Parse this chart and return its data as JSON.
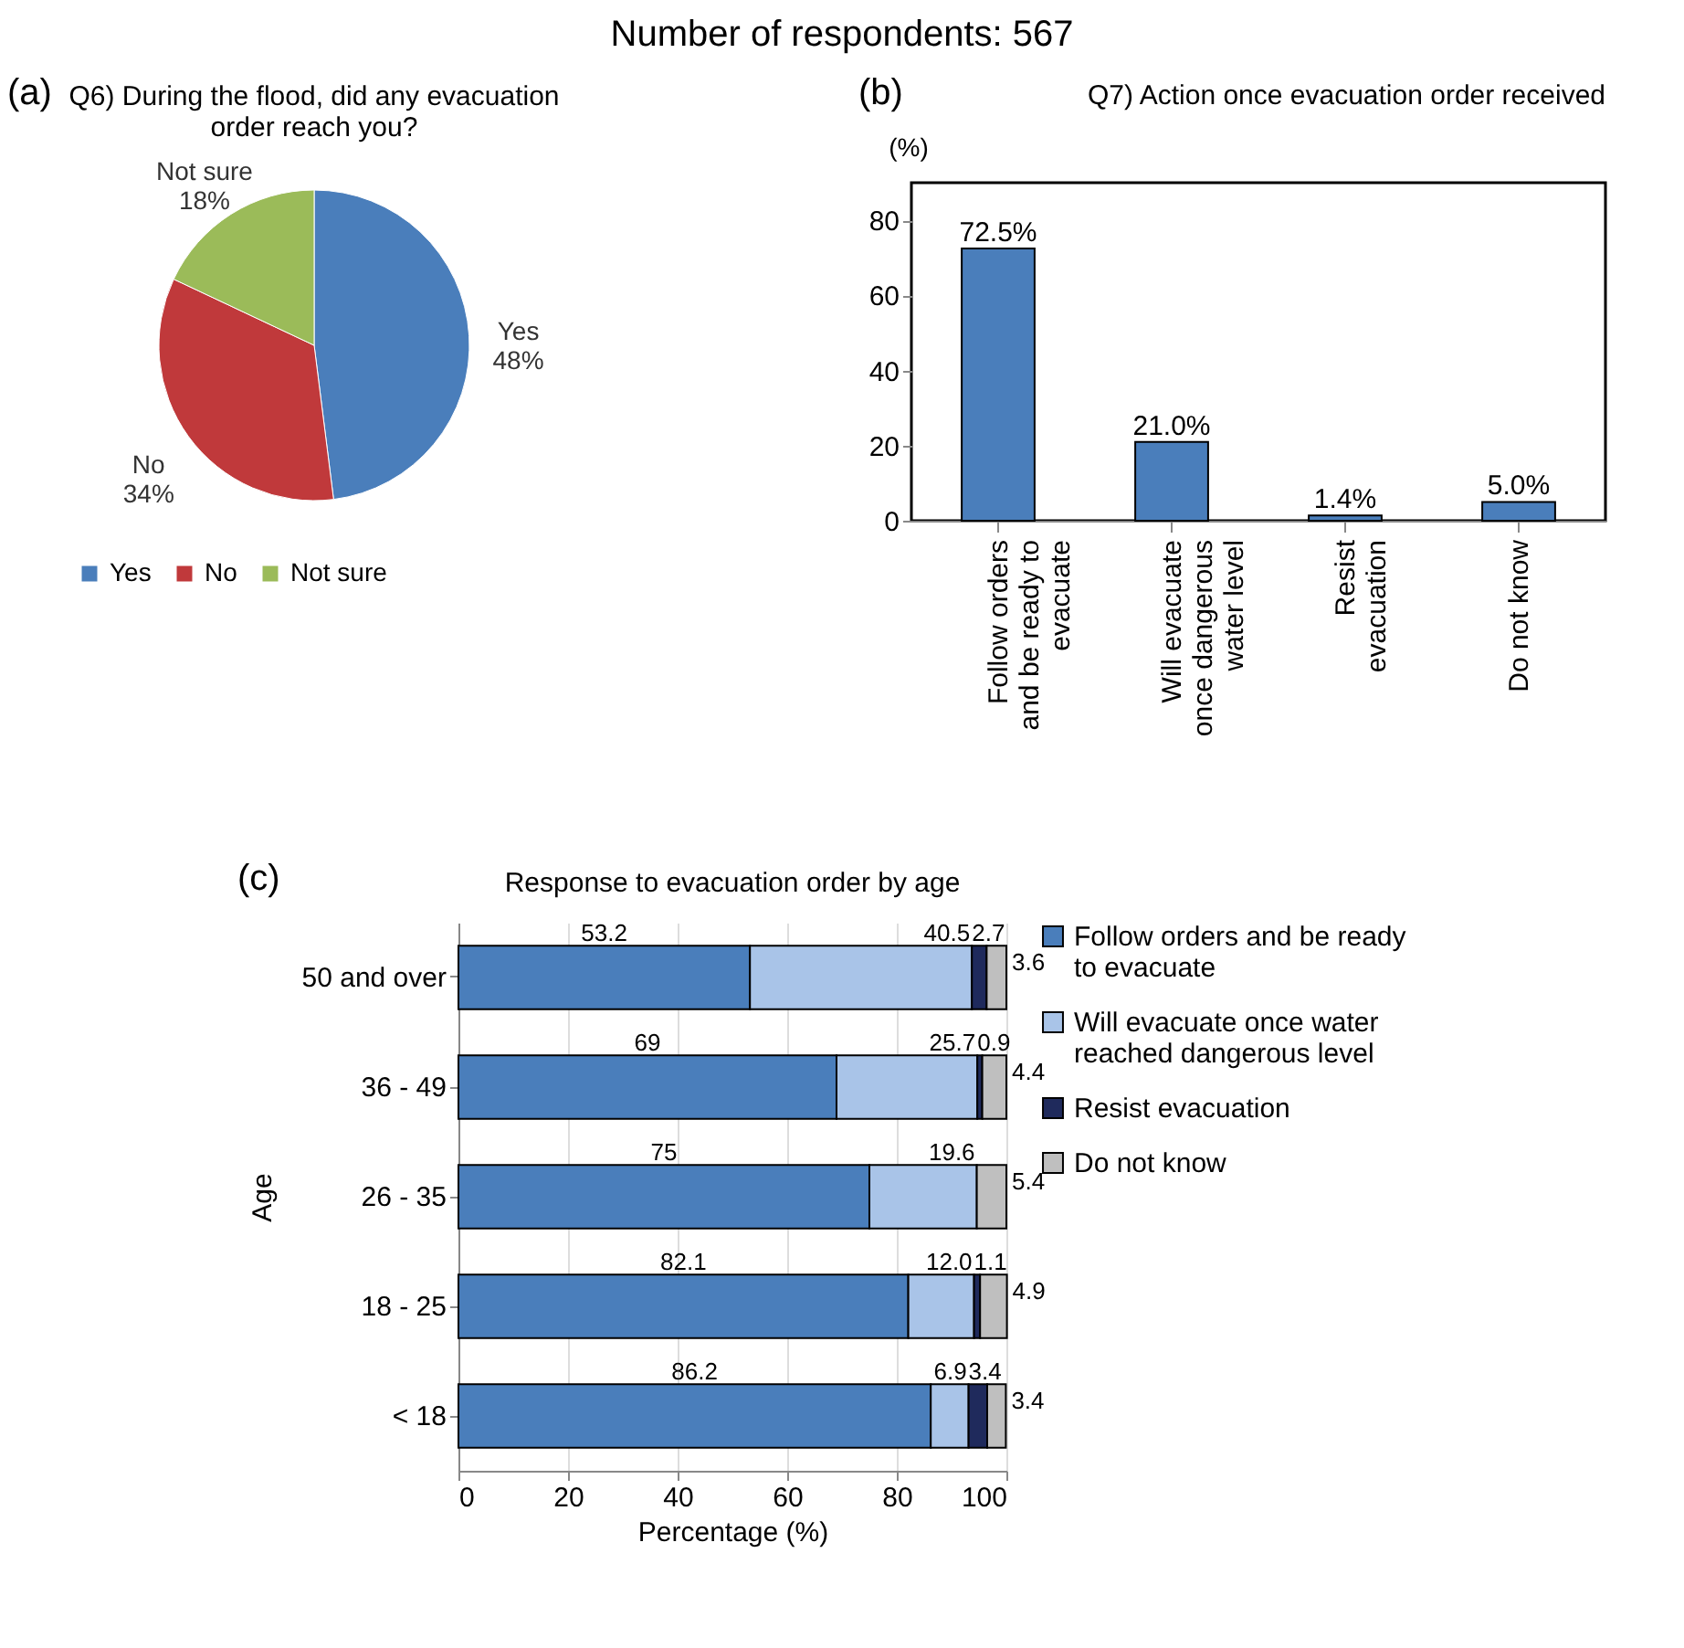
{
  "chart_data": [
    {
      "type": "pie",
      "title": "Q6) During the flood, did any evacuation order reach you?",
      "annotations": [
        "Number of respondents: 567",
        "(a)"
      ],
      "categories": [
        "Yes",
        "No",
        "Not sure"
      ],
      "values": [
        48,
        34,
        18
      ],
      "colors": [
        "#4a7ebb",
        "#c0393b",
        "#9bbb59"
      ],
      "value_labels": [
        "48%",
        "34%",
        "18%"
      ],
      "legend": "bottom"
    },
    {
      "type": "bar",
      "title": "Q7) Action once evacuation order received",
      "annotations": [
        "(b)"
      ],
      "ylabel": "(%)",
      "categories": [
        "Follow orders and be ready to evacuate",
        "Will evacuate once dangerous water level",
        "Resist evacuation",
        "Do not know"
      ],
      "values": [
        72.5,
        21.0,
        1.4,
        5.0
      ],
      "value_labels": [
        "72.5%",
        "21.0%",
        "1.4%",
        "5.0%"
      ],
      "color": "#4a7ebb",
      "ylim": [
        0,
        90
      ],
      "yticks": [
        0,
        20,
        40,
        60,
        80
      ]
    },
    {
      "type": "bar",
      "orientation": "horizontal",
      "stacked": true,
      "title": "Response to evacuation order by age",
      "annotations": [
        "(c)"
      ],
      "xlabel": "Percentage (%)",
      "ylabel": "Age",
      "categories": [
        "50 and over",
        "36 - 49",
        "26 - 35",
        "18 - 25",
        "< 18"
      ],
      "series": [
        {
          "name": "Follow orders and be ready to evacuate",
          "color": "#4a7ebb",
          "values": [
            53.2,
            69,
            75,
            82.1,
            86.2
          ],
          "value_labels": [
            "53.2",
            "69",
            "75",
            "82.1",
            "86.2"
          ]
        },
        {
          "name": "Will evacuate once water reached dangerous level",
          "color": "#a9c4e8",
          "values": [
            40.5,
            25.7,
            19.6,
            12.0,
            6.9
          ],
          "value_labels": [
            "40.5",
            "25.7",
            "19.6",
            "12.0",
            "6.9"
          ]
        },
        {
          "name": "Resist evacuation",
          "color": "#1f2a5c",
          "values": [
            2.7,
            0.9,
            null,
            1.1,
            3.4
          ],
          "value_labels": [
            "2.7",
            "0.9",
            null,
            "1.1",
            "3.4"
          ]
        },
        {
          "name": "Do not know",
          "color": "#bfbfbf",
          "values": [
            3.6,
            4.4,
            5.4,
            4.9,
            3.4
          ],
          "value_labels": [
            "3.6",
            "4.4",
            "5.4",
            "4.9",
            "3.4"
          ]
        }
      ],
      "xlim": [
        0,
        100
      ],
      "xticks": [
        0,
        20,
        40,
        60,
        80,
        100
      ],
      "grid": "x",
      "legend": "right"
    }
  ]
}
